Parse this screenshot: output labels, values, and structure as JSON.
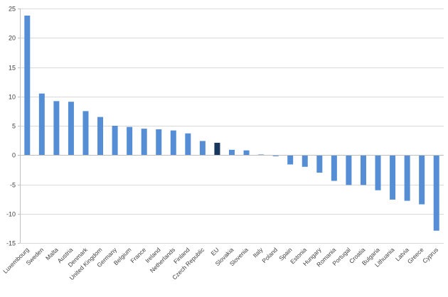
{
  "chart_data": {
    "type": "bar",
    "title": "",
    "xlabel": "",
    "ylabel": "",
    "ylim": [
      -15,
      25
    ],
    "y_ticks": [
      25,
      20,
      15,
      10,
      5,
      0,
      -5,
      -10,
      -15
    ],
    "grid": true,
    "legend": "none",
    "colors": {
      "default": "#558ED5",
      "highlight": "#17375E"
    },
    "highlight_category": "EU",
    "categories": [
      "Luxembourg",
      "Sweden",
      "Malta",
      "Austria",
      "Denmark",
      "United Kingdom",
      "Germany",
      "Belgium",
      "France",
      "Ireland",
      "Netherlands",
      "Finland",
      "Czech Republic",
      "EU",
      "Slovakia",
      "Slovenia",
      "Italy",
      "Poland",
      "Spain",
      "Estonia",
      "Hungary",
      "Romania",
      "Portugal",
      "Croatia",
      "Bulgaria",
      "Lithuania",
      "Latvia",
      "Greece",
      "Cyprus"
    ],
    "values": [
      23.8,
      10.5,
      9.2,
      9.1,
      7.5,
      6.5,
      5.0,
      4.8,
      4.5,
      4.4,
      4.2,
      3.7,
      2.4,
      2.1,
      0.9,
      0.8,
      0.1,
      -0.2,
      -1.6,
      -2.0,
      -3.0,
      -4.4,
      -5.1,
      -5.1,
      -6.0,
      -7.6,
      -7.8,
      -8.4,
      -12.9
    ]
  }
}
